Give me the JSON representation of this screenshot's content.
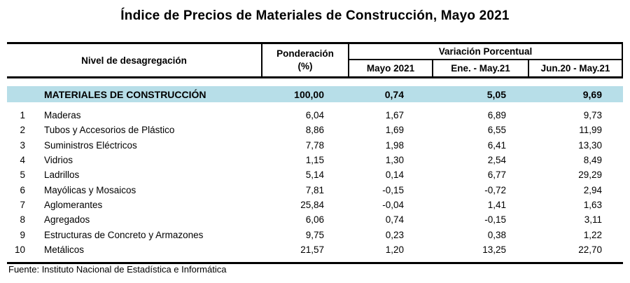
{
  "title": "Índice de Precios de Materiales de Construcción, Mayo 2021",
  "table": {
    "headers": {
      "level": "Nivel de desagregación",
      "weight_line1": "Ponderación",
      "weight_line2": "(%)",
      "variation_group": "Variación Porcentual",
      "period_may": "Mayo 2021",
      "period_jan_may": "Ene. - May.21",
      "period_jun_may": "Jun.20 - May.21"
    },
    "total_row": {
      "label": "MATERIALES DE CONSTRUCCIÓN",
      "weight": "100,00",
      "may_2021": "0,74",
      "jan_may_21": "5,05",
      "jun20_may21": "9,69"
    },
    "rows": [
      {
        "num": "1",
        "label": "Maderas",
        "weight": "6,04",
        "may_2021": "1,67",
        "jan_may_21": "6,89",
        "jun20_may21": "9,73"
      },
      {
        "num": "2",
        "label": "Tubos y Accesorios de Plástico",
        "weight": "8,86",
        "may_2021": "1,69",
        "jan_may_21": "6,55",
        "jun20_may21": "11,99"
      },
      {
        "num": "3",
        "label": "Suministros Eléctricos",
        "weight": "7,78",
        "may_2021": "1,98",
        "jan_may_21": "6,41",
        "jun20_may21": "13,30"
      },
      {
        "num": "4",
        "label": "Vidrios",
        "weight": "1,15",
        "may_2021": "1,30",
        "jan_may_21": "2,54",
        "jun20_may21": "8,49"
      },
      {
        "num": "5",
        "label": "Ladrillos",
        "weight": "5,14",
        "may_2021": "0,14",
        "jan_may_21": "6,77",
        "jun20_may21": "29,29"
      },
      {
        "num": "6",
        "label": "Mayólicas y Mosaicos",
        "weight": "7,81",
        "may_2021": "-0,15",
        "jan_may_21": "-0,72",
        "jun20_may21": "2,94"
      },
      {
        "num": "7",
        "label": "Aglomerantes",
        "weight": "25,84",
        "may_2021": "-0,04",
        "jan_may_21": "1,41",
        "jun20_may21": "1,63"
      },
      {
        "num": "8",
        "label": "Agregados",
        "weight": "6,06",
        "may_2021": "0,74",
        "jan_may_21": "-0,15",
        "jun20_may21": "3,11"
      },
      {
        "num": "9",
        "label": "Estructuras de Concreto y Armazones",
        "weight": "9,75",
        "may_2021": "0,23",
        "jan_may_21": "0,38",
        "jun20_may21": "1,22"
      },
      {
        "num": "10",
        "label": "Metálicos",
        "weight": "21,57",
        "may_2021": "1,20",
        "jan_may_21": "13,25",
        "jun20_may21": "22,70"
      }
    ]
  },
  "footer": "Fuente: Instituto Nacional de Estadística e Informática",
  "colors": {
    "highlight": "#B7DEE8",
    "border": "#000000"
  }
}
